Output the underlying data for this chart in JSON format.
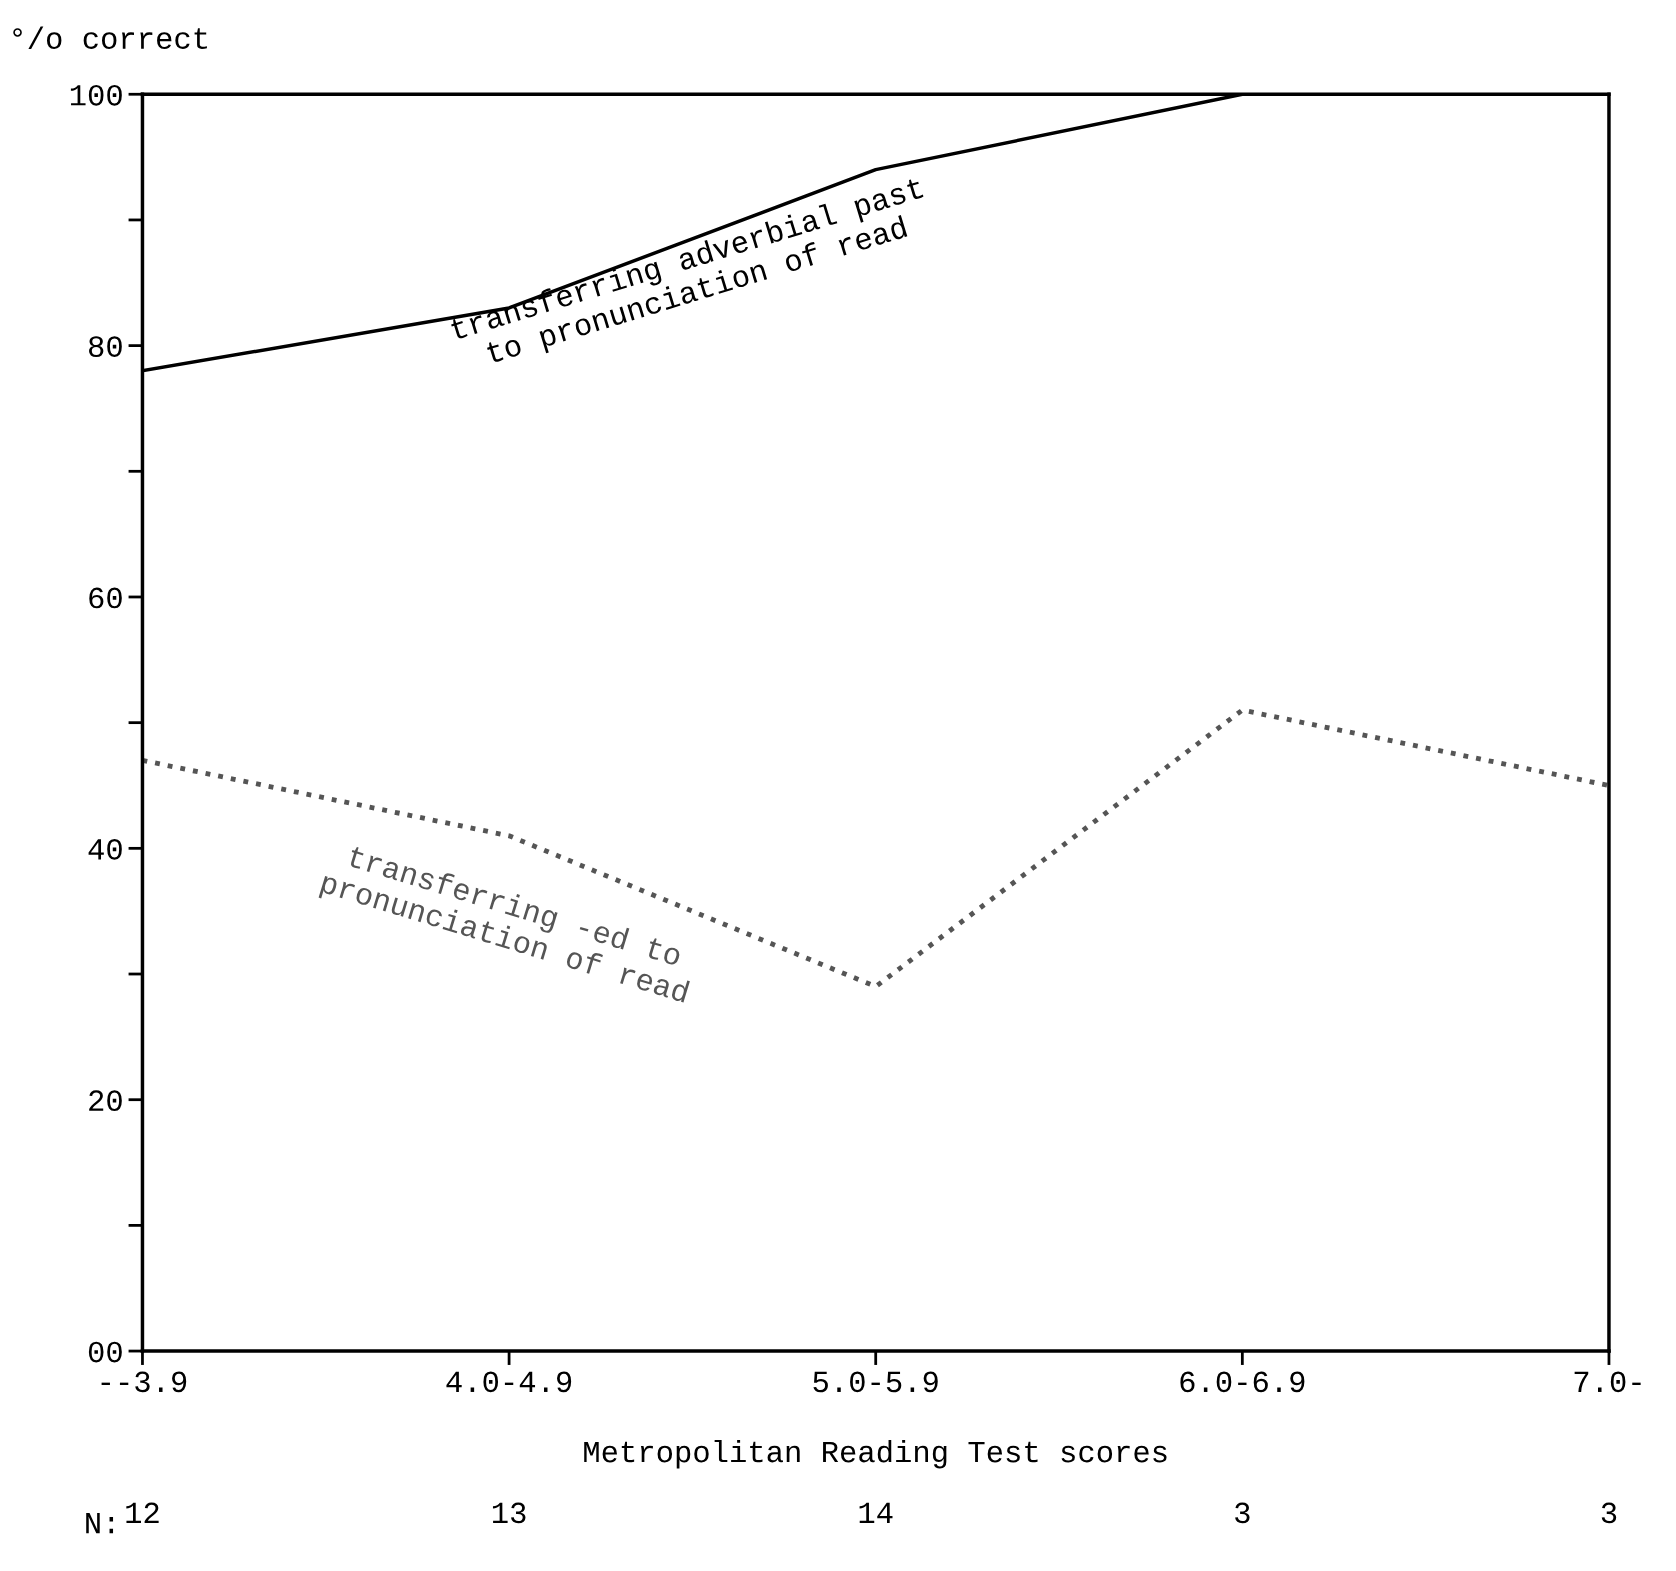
{
  "chart_data": {
    "type": "line",
    "ylabel": "°/o correct",
    "xlabel": "Metropolitan Reading Test scores",
    "categories": [
      "--3.9",
      "4.0-4.9",
      "5.0-5.9",
      "6.0-6.9",
      "7.0-"
    ],
    "series": [
      {
        "name": "transferring adverbial past\nto pronunciation of read",
        "color": "#000000",
        "line_style": "solid",
        "values": [
          78,
          83,
          94,
          100,
          100
        ]
      },
      {
        "name": "transferring -ed to\npronunciation of read",
        "color": "#555555",
        "line_style": "dotted",
        "values": [
          47,
          41,
          29,
          51,
          45
        ]
      }
    ],
    "ylim": [
      0,
      100
    ],
    "yticks": [
      {
        "value": 0,
        "label": "00"
      },
      {
        "value": 10,
        "label": null
      },
      20,
      {
        "value": 30,
        "label": null
      },
      40,
      {
        "value": 50,
        "label": null
      },
      60,
      {
        "value": 70,
        "label": null
      },
      80,
      {
        "value": 90,
        "label": null
      },
      100
    ],
    "grid": false,
    "legend": false,
    "annotations": [
      "N:",
      "12",
      "13",
      "14",
      "3",
      "3"
    ]
  }
}
